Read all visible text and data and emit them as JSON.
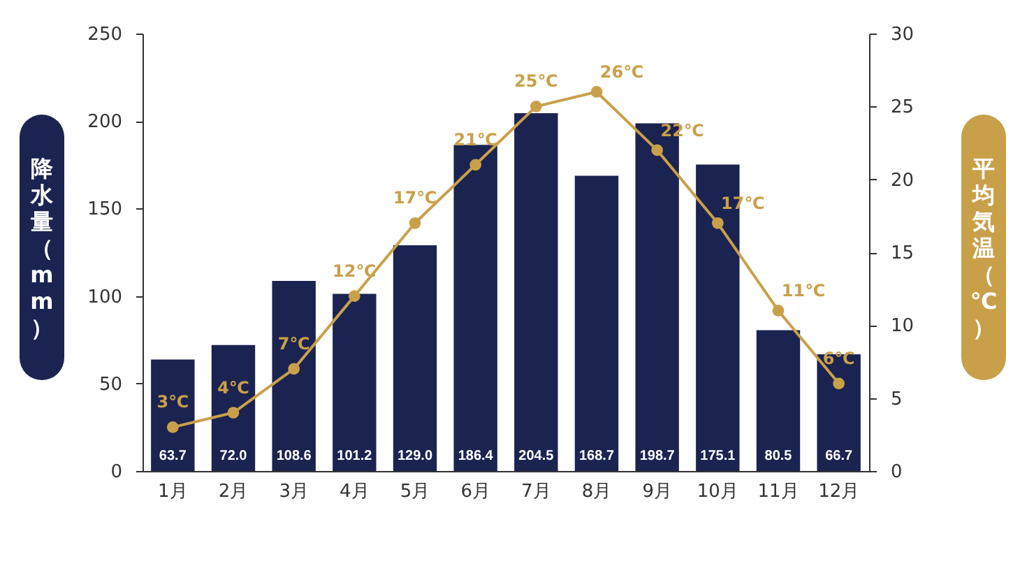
{
  "chart_data": {
    "type": "bar",
    "categories": [
      "1月",
      "2月",
      "3月",
      "4月",
      "5月",
      "6月",
      "7月",
      "8月",
      "9月",
      "10月",
      "11月",
      "12月"
    ],
    "ylabel": "降水量（mm）",
    "y2label": "平均気温（℃）",
    "ylim": [
      0,
      250
    ],
    "yticks": [
      0,
      50,
      100,
      150,
      200,
      250
    ],
    "y2lim": [
      0,
      30
    ],
    "y2ticks": [
      0,
      5,
      10,
      15,
      20,
      25,
      30
    ],
    "grid": false,
    "marker": "circle",
    "series": [
      {
        "color": "#1b2350",
        "values": [
          63.7,
          72.0,
          108.6,
          101.2,
          129.0,
          186.4,
          204.5,
          168.7,
          198.7,
          175.1,
          80.5,
          66.7
        ],
        "value_labels": [
          "63.7",
          "72.0",
          "108.6",
          "101.2",
          "129.0",
          "186.4",
          "204.5",
          "168.7",
          "198.7",
          "175.1",
          "80.5",
          "66.7"
        ]
      },
      {
        "type": "line",
        "axis": "y2",
        "color": "#c9a04a",
        "values": [
          3,
          4,
          7,
          12,
          17,
          21,
          25,
          26,
          22,
          17,
          11,
          6
        ],
        "value_labels": [
          "3℃",
          "4℃",
          "7℃",
          "12℃",
          "17℃",
          "21℃",
          "25℃",
          "26℃",
          "22℃",
          "17℃",
          "11℃",
          "6℃"
        ]
      }
    ]
  }
}
